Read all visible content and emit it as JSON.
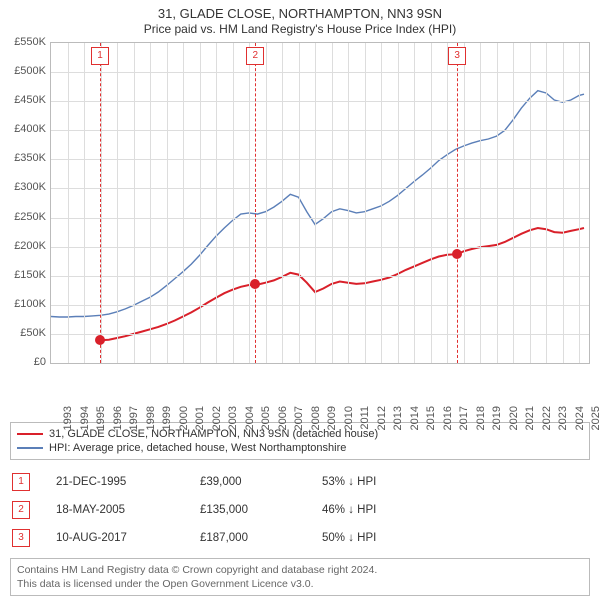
{
  "title": "31, GLADE CLOSE, NORTHAMPTON, NN3 9SN",
  "subtitle": "Price paid vs. HM Land Registry's House Price Index (HPI)",
  "chart": {
    "type": "line",
    "background_color": "#ffffff",
    "grid_color": "#dddddd",
    "border_color": "#bbbbbb",
    "x": {
      "years": [
        1993,
        1994,
        1995,
        1996,
        1997,
        1998,
        1999,
        2000,
        2001,
        2002,
        2003,
        2004,
        2005,
        2006,
        2007,
        2008,
        2009,
        2010,
        2011,
        2012,
        2013,
        2014,
        2015,
        2016,
        2017,
        2018,
        2019,
        2020,
        2021,
        2022,
        2023,
        2024,
        2025
      ],
      "min": 1993,
      "max": 2025.6
    },
    "y": {
      "min": 0,
      "max": 550000,
      "step": 50000,
      "labels": [
        "£0",
        "£50K",
        "£100K",
        "£150K",
        "£200K",
        "£250K",
        "£300K",
        "£350K",
        "£400K",
        "£450K",
        "£500K",
        "£550K"
      ]
    },
    "series": [
      {
        "id": "price_paid",
        "label": "31, GLADE CLOSE, NORTHAMPTON, NN3 9SN (detached house)",
        "color": "#d9202a",
        "line_width": 2,
        "points": [
          [
            1995.97,
            39000
          ],
          [
            1996.5,
            40000
          ],
          [
            1997.0,
            43000
          ],
          [
            1997.5,
            46000
          ],
          [
            1998.0,
            50000
          ],
          [
            1998.5,
            54000
          ],
          [
            1999.0,
            58000
          ],
          [
            1999.5,
            62000
          ],
          [
            2000.0,
            67000
          ],
          [
            2000.5,
            73000
          ],
          [
            2001.0,
            80000
          ],
          [
            2001.5,
            87000
          ],
          [
            2002.0,
            95000
          ],
          [
            2002.5,
            104000
          ],
          [
            2003.0,
            112000
          ],
          [
            2003.5,
            120000
          ],
          [
            2004.0,
            126000
          ],
          [
            2004.5,
            131000
          ],
          [
            2005.0,
            134000
          ],
          [
            2005.38,
            135000
          ],
          [
            2005.7,
            136000
          ],
          [
            2006.0,
            138000
          ],
          [
            2006.5,
            142000
          ],
          [
            2007.0,
            148000
          ],
          [
            2007.5,
            155000
          ],
          [
            2008.0,
            152000
          ],
          [
            2008.5,
            138000
          ],
          [
            2009.0,
            122000
          ],
          [
            2009.5,
            128000
          ],
          [
            2010.0,
            136000
          ],
          [
            2010.5,
            140000
          ],
          [
            2011.0,
            138000
          ],
          [
            2011.5,
            136000
          ],
          [
            2012.0,
            137000
          ],
          [
            2012.5,
            140000
          ],
          [
            2013.0,
            143000
          ],
          [
            2013.5,
            147000
          ],
          [
            2014.0,
            153000
          ],
          [
            2014.5,
            160000
          ],
          [
            2015.0,
            166000
          ],
          [
            2015.5,
            172000
          ],
          [
            2016.0,
            178000
          ],
          [
            2016.5,
            183000
          ],
          [
            2017.0,
            186000
          ],
          [
            2017.61,
            187000
          ],
          [
            2018.0,
            192000
          ],
          [
            2018.5,
            196000
          ],
          [
            2019.0,
            199000
          ],
          [
            2019.5,
            201000
          ],
          [
            2020.0,
            203000
          ],
          [
            2020.5,
            208000
          ],
          [
            2021.0,
            215000
          ],
          [
            2021.5,
            222000
          ],
          [
            2022.0,
            228000
          ],
          [
            2022.5,
            232000
          ],
          [
            2023.0,
            230000
          ],
          [
            2023.5,
            225000
          ],
          [
            2024.0,
            224000
          ],
          [
            2024.5,
            227000
          ],
          [
            2025.0,
            230000
          ],
          [
            2025.3,
            232000
          ]
        ],
        "markers": [
          {
            "x": 1995.97,
            "y": 39000
          },
          {
            "x": 2005.38,
            "y": 135000
          },
          {
            "x": 2017.61,
            "y": 187000
          }
        ],
        "marker_radius": 5
      },
      {
        "id": "hpi",
        "label": "HPI: Average price, detached house, West Northamptonshire",
        "color": "#5b7fb8",
        "line_width": 1.4,
        "points": [
          [
            1993.0,
            80000
          ],
          [
            1993.5,
            79000
          ],
          [
            1994.0,
            79000
          ],
          [
            1994.5,
            80000
          ],
          [
            1995.0,
            80000
          ],
          [
            1995.5,
            81000
          ],
          [
            1996.0,
            82000
          ],
          [
            1996.5,
            84000
          ],
          [
            1997.0,
            88000
          ],
          [
            1997.5,
            93000
          ],
          [
            1998.0,
            99000
          ],
          [
            1998.5,
            106000
          ],
          [
            1999.0,
            113000
          ],
          [
            1999.5,
            122000
          ],
          [
            2000.0,
            133000
          ],
          [
            2000.5,
            145000
          ],
          [
            2001.0,
            157000
          ],
          [
            2001.5,
            170000
          ],
          [
            2002.0,
            185000
          ],
          [
            2002.5,
            202000
          ],
          [
            2003.0,
            218000
          ],
          [
            2003.5,
            232000
          ],
          [
            2004.0,
            245000
          ],
          [
            2004.5,
            256000
          ],
          [
            2005.0,
            258000
          ],
          [
            2005.5,
            256000
          ],
          [
            2006.0,
            260000
          ],
          [
            2006.5,
            268000
          ],
          [
            2007.0,
            278000
          ],
          [
            2007.5,
            290000
          ],
          [
            2008.0,
            285000
          ],
          [
            2008.5,
            260000
          ],
          [
            2009.0,
            238000
          ],
          [
            2009.5,
            248000
          ],
          [
            2010.0,
            260000
          ],
          [
            2010.5,
            265000
          ],
          [
            2011.0,
            262000
          ],
          [
            2011.5,
            258000
          ],
          [
            2012.0,
            260000
          ],
          [
            2012.5,
            265000
          ],
          [
            2013.0,
            270000
          ],
          [
            2013.5,
            278000
          ],
          [
            2014.0,
            288000
          ],
          [
            2014.5,
            300000
          ],
          [
            2015.0,
            312000
          ],
          [
            2015.5,
            323000
          ],
          [
            2016.0,
            335000
          ],
          [
            2016.5,
            348000
          ],
          [
            2017.0,
            358000
          ],
          [
            2017.5,
            367000
          ],
          [
            2018.0,
            373000
          ],
          [
            2018.5,
            378000
          ],
          [
            2019.0,
            382000
          ],
          [
            2019.5,
            385000
          ],
          [
            2020.0,
            390000
          ],
          [
            2020.5,
            400000
          ],
          [
            2021.0,
            418000
          ],
          [
            2021.5,
            438000
          ],
          [
            2022.0,
            455000
          ],
          [
            2022.5,
            468000
          ],
          [
            2023.0,
            464000
          ],
          [
            2023.5,
            452000
          ],
          [
            2024.0,
            448000
          ],
          [
            2024.5,
            452000
          ],
          [
            2025.0,
            460000
          ],
          [
            2025.3,
            462000
          ]
        ]
      }
    ],
    "events": [
      {
        "n": "1",
        "x": 1995.97
      },
      {
        "n": "2",
        "x": 2005.38
      },
      {
        "n": "3",
        "x": 2017.61
      }
    ],
    "event_line_color": "#e03030",
    "event_badge_border": "#e03030",
    "event_badge_text": "#e03030"
  },
  "legend": {
    "items": [
      {
        "color": "#d9202a",
        "label": "31, GLADE CLOSE, NORTHAMPTON, NN3 9SN (detached house)"
      },
      {
        "color": "#5b7fb8",
        "label": "HPI: Average price, detached house, West Northamptonshire"
      }
    ]
  },
  "events_table": [
    {
      "n": "1",
      "date": "21-DEC-1995",
      "price": "£39,000",
      "delta": "53% ↓ HPI"
    },
    {
      "n": "2",
      "date": "18-MAY-2005",
      "price": "£135,000",
      "delta": "46% ↓ HPI"
    },
    {
      "n": "3",
      "date": "10-AUG-2017",
      "price": "£187,000",
      "delta": "50% ↓ HPI"
    }
  ],
  "footer": {
    "line1": "Contains HM Land Registry data © Crown copyright and database right 2024.",
    "line2": "This data is licensed under the Open Government Licence v3.0."
  }
}
